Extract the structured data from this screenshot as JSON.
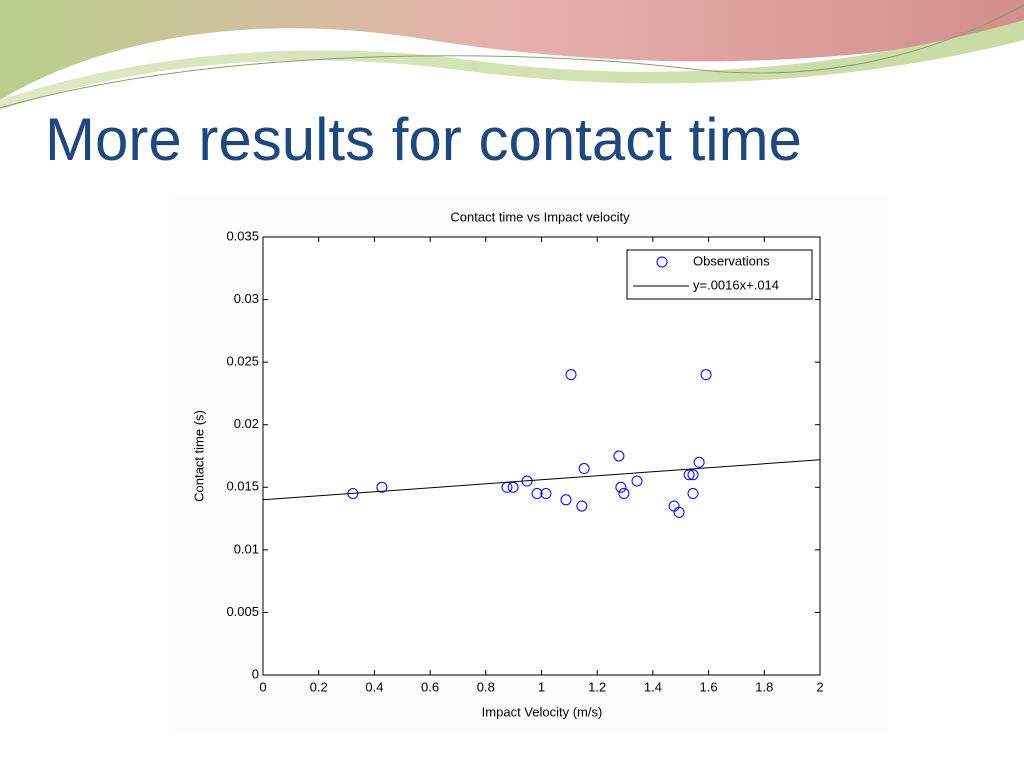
{
  "slide": {
    "title": "More results for contact time"
  },
  "chart_data": {
    "type": "scatter",
    "title": "Contact time vs Impact velocity",
    "x_label": "Impact Velocity (m/s)",
    "y_label": "Contact time (s)",
    "xlim": [
      0,
      2
    ],
    "xticks": [
      0,
      0.2,
      0.4,
      0.6,
      0.8,
      1,
      1.2,
      1.4,
      1.6,
      1.8,
      2
    ],
    "ylim": [
      0,
      0.035
    ],
    "yticks": [
      0,
      0.005,
      0.01,
      0.015,
      0.02,
      0.025,
      0.03,
      0.035
    ],
    "grid": false,
    "legend": "upper right",
    "series": [
      {
        "name": "Observations",
        "type": "scatter",
        "color": "#0000ff",
        "x": [
          0.323,
          0.427,
          0.876,
          0.898,
          0.948,
          0.984,
          1.016,
          1.088,
          1.106,
          1.145,
          1.153,
          1.278,
          1.285,
          1.296,
          1.343,
          1.476,
          1.494,
          1.53,
          1.544,
          1.544,
          1.566,
          1.591
        ],
        "values": [
          0.0145,
          0.015,
          0.015,
          0.015,
          0.0155,
          0.0145,
          0.0145,
          0.014,
          0.024,
          0.0135,
          0.0165,
          0.0175,
          0.015,
          0.0145,
          0.0155,
          0.0135,
          0.013,
          0.016,
          0.016,
          0.0145,
          0.017,
          0.024
        ]
      },
      {
        "name": "y=.0016x+.014",
        "type": "line",
        "color": "#000000",
        "x": [
          0,
          2
        ],
        "values": [
          0.014,
          0.0172
        ]
      }
    ]
  }
}
